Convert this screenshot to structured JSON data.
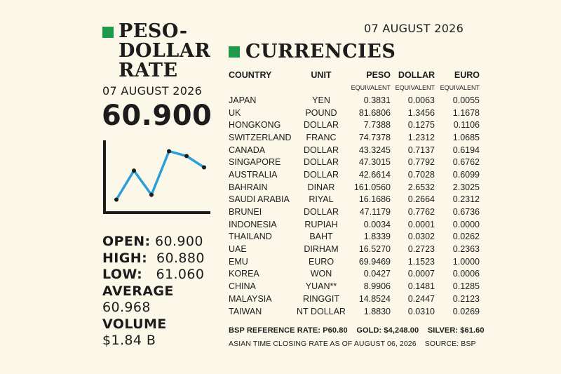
{
  "header": {
    "date": "07 AUGUST 2026"
  },
  "left": {
    "title_line1": "PESO-",
    "title_line2": "DOLLAR",
    "title_line3": "RATE",
    "date": "07 AUGUST 2026",
    "rate": "60.900",
    "accent_color": "#1e9b4a",
    "line_color": "#2a9fd8",
    "stats": {
      "open_label": "OPEN:",
      "open_value": "60.900",
      "high_label": "HIGH:",
      "high_value": "60.880",
      "low_label": "LOW:",
      "low_value": "61.060",
      "average_label": "AVERAGE",
      "average_value": "60.968",
      "volume_label": "VOLUME",
      "volume_value": "$1.84 B"
    }
  },
  "currencies": {
    "title": "CURRENCIES",
    "headers": {
      "country": "COUNTRY",
      "unit": "UNIT",
      "peso": "PESO",
      "dollar": "DOLLAR",
      "euro": "EURO",
      "peso_sub": "EQUIVALENT",
      "dollar_sub": "EQUIVALENT",
      "euro_sub": "EQUIVALENT"
    },
    "rows": [
      {
        "country": "JAPAN",
        "unit": "YEN",
        "peso": "0.3831",
        "dollar": "0.0063",
        "euro": "0.0055"
      },
      {
        "country": "UK",
        "unit": "POUND",
        "peso": "81.6806",
        "dollar": "1.3456",
        "euro": "1.1678"
      },
      {
        "country": "HONGKONG",
        "unit": "DOLLAR",
        "peso": "7.7388",
        "dollar": "0.1275",
        "euro": "0.1106"
      },
      {
        "country": "SWITZERLAND",
        "unit": "FRANC",
        "peso": "74.7378",
        "dollar": "1.2312",
        "euro": "1.0685"
      },
      {
        "country": "CANADA",
        "unit": "DOLLAR",
        "peso": "43.3245",
        "dollar": "0.7137",
        "euro": "0.6194"
      },
      {
        "country": "SINGAPORE",
        "unit": "DOLLAR",
        "peso": "47.3015",
        "dollar": "0.7792",
        "euro": "0.6762"
      },
      {
        "country": "AUSTRALIA",
        "unit": "DOLLAR",
        "peso": "42.6614",
        "dollar": "0.7028",
        "euro": "0.6099"
      },
      {
        "country": "BAHRAIN",
        "unit": "DINAR",
        "peso": "161.0560",
        "dollar": "2.6532",
        "euro": "2.3025"
      },
      {
        "country": "SAUDI ARABIA",
        "unit": "RIYAL",
        "peso": "16.1686",
        "dollar": "0.2664",
        "euro": "0.2312"
      },
      {
        "country": "BRUNEI",
        "unit": "DOLLAR",
        "peso": "47.1179",
        "dollar": "0.7762",
        "euro": "0.6736"
      },
      {
        "country": "INDONESIA",
        "unit": "RUPIAH",
        "peso": "0.0034",
        "dollar": "0.0001",
        "euro": "0.0000"
      },
      {
        "country": "THAILAND",
        "unit": "BAHT",
        "peso": "1.8339",
        "dollar": "0.0302",
        "euro": "0.0262"
      },
      {
        "country": "UAE",
        "unit": "DIRHAM",
        "peso": "16.5270",
        "dollar": "0.2723",
        "euro": "0.2363"
      },
      {
        "country": "EMU",
        "unit": "EURO",
        "peso": "69.9469",
        "dollar": "1.1523",
        "euro": "1.0000"
      },
      {
        "country": "KOREA",
        "unit": "WON",
        "peso": "0.0427",
        "dollar": "0.0007",
        "euro": "0.0006"
      },
      {
        "country": "CHINA",
        "unit": "YUAN**",
        "peso": "8.9906",
        "dollar": "0.1481",
        "euro": "0.1285"
      },
      {
        "country": "MALAYSIA",
        "unit": "RINGGIT",
        "peso": "14.8524",
        "dollar": "0.2447",
        "euro": "0.2123"
      },
      {
        "country": "TAIWAN",
        "unit": "NT DOLLAR",
        "peso": "1.8830",
        "dollar": "0.0310",
        "euro": "0.0269"
      }
    ]
  },
  "footer": {
    "bsp_rate": "BSP REFERENCE RATE: P60.80",
    "gold": "GOLD: $4,248.00",
    "silver": "SILVER: $61.60",
    "note": "ASIAN TIME CLOSING RATE AS OF AUGUST 06, 2026",
    "source": "SOURCE: BSP"
  },
  "chart_data": {
    "type": "line",
    "title": "",
    "xlabel": "",
    "ylabel": "",
    "x": [
      1,
      2,
      3,
      4,
      5,
      6
    ],
    "series": [
      {
        "values": [
          1.0,
          4.6,
          1.6,
          7.0,
          6.4,
          5.0
        ]
      }
    ],
    "ylim": [
      0,
      8
    ],
    "grid": false
  }
}
